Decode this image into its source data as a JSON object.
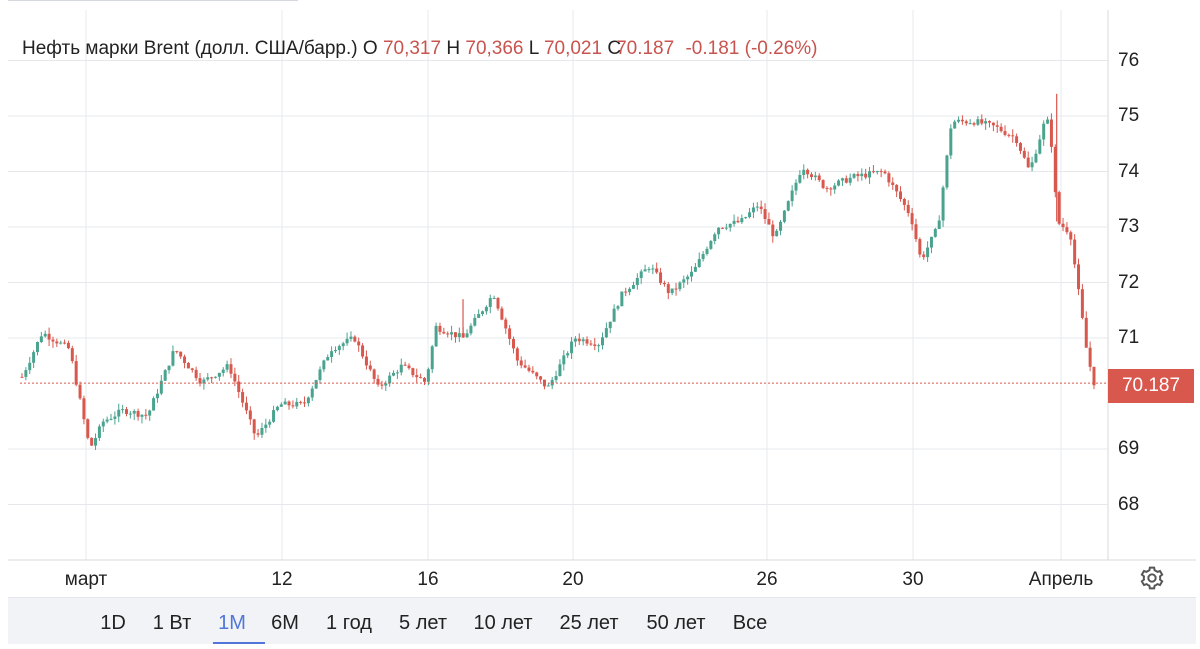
{
  "legend": {
    "name": "Нефть марки Brent (долл. США/барр.)",
    "o_key": "O",
    "o_val": "70,317",
    "h_key": "H",
    "h_val": "70,366",
    "l_key": "L",
    "l_val": "70,021",
    "c_key": "C",
    "c_val": "70.187",
    "change": "-0.181",
    "change_pct": "(-0.26%)"
  },
  "price_tag": "70.187",
  "colors": {
    "up": "#4aa38f",
    "down": "#d9584e",
    "grid": "#e6e8eb",
    "accent": "#4f76d8"
  },
  "settings_icon": "gear-icon",
  "ranges": [
    "1D",
    "1 Вт",
    "1M",
    "6M",
    "1 год",
    "5 лет",
    "10 лет",
    "25 лет",
    "50 лет",
    "Все"
  ],
  "active_range": "1M",
  "chart_data": {
    "type": "candlestick",
    "y_ticks": [
      76,
      75,
      74,
      73,
      72,
      71,
      69,
      68
    ],
    "ylim": [
      67.2,
      76.6
    ],
    "last_price": 70.187,
    "x_ticks": [
      "март",
      "12",
      "16",
      "20",
      "26",
      "30",
      "Апрель"
    ],
    "path_anchors": [
      [
        0,
        70.3
      ],
      [
        1.2,
        71.1
      ],
      [
        2.8,
        70.8
      ],
      [
        4.0,
        69.0
      ],
      [
        4.8,
        69.5
      ],
      [
        6.0,
        69.7
      ],
      [
        7.4,
        69.6
      ],
      [
        9.0,
        70.8
      ],
      [
        10.6,
        70.2
      ],
      [
        12.2,
        70.5
      ],
      [
        13.8,
        69.2
      ],
      [
        15.2,
        69.8
      ],
      [
        16.6,
        69.8
      ],
      [
        18.2,
        70.8
      ],
      [
        19.6,
        71.0
      ],
      [
        21.0,
        70.1
      ],
      [
        22.4,
        70.5
      ],
      [
        23.8,
        70.2
      ],
      [
        24.4,
        71.2
      ],
      [
        26.0,
        71.0
      ],
      [
        27.8,
        71.8
      ],
      [
        29.2,
        70.6
      ],
      [
        31.0,
        70.1
      ],
      [
        32.6,
        71.0
      ],
      [
        34.0,
        70.9
      ],
      [
        35.4,
        71.8
      ],
      [
        37.0,
        72.3
      ],
      [
        38.2,
        71.8
      ],
      [
        39.6,
        72.2
      ],
      [
        41.0,
        73.0
      ],
      [
        42.4,
        73.1
      ],
      [
        43.4,
        73.4
      ],
      [
        44.4,
        72.8
      ],
      [
        46.0,
        74.1
      ],
      [
        47.4,
        73.7
      ],
      [
        49.0,
        73.9
      ],
      [
        50.8,
        74.0
      ],
      [
        52.4,
        73.2
      ],
      [
        53.0,
        72.4
      ],
      [
        54.0,
        73.0
      ],
      [
        54.8,
        74.9
      ],
      [
        56.2,
        74.9
      ],
      [
        57.4,
        74.8
      ],
      [
        58.6,
        74.6
      ],
      [
        59.4,
        74.0
      ],
      [
        60.4,
        75.0
      ],
      [
        60.8,
        74.3
      ],
      [
        61.0,
        73.1
      ],
      [
        61.8,
        72.9
      ],
      [
        62.8,
        70.7
      ],
      [
        63.2,
        70.2
      ]
    ],
    "wick_spikes": [
      [
        26,
        71.7
      ],
      [
        61.0,
        75.4
      ]
    ]
  }
}
